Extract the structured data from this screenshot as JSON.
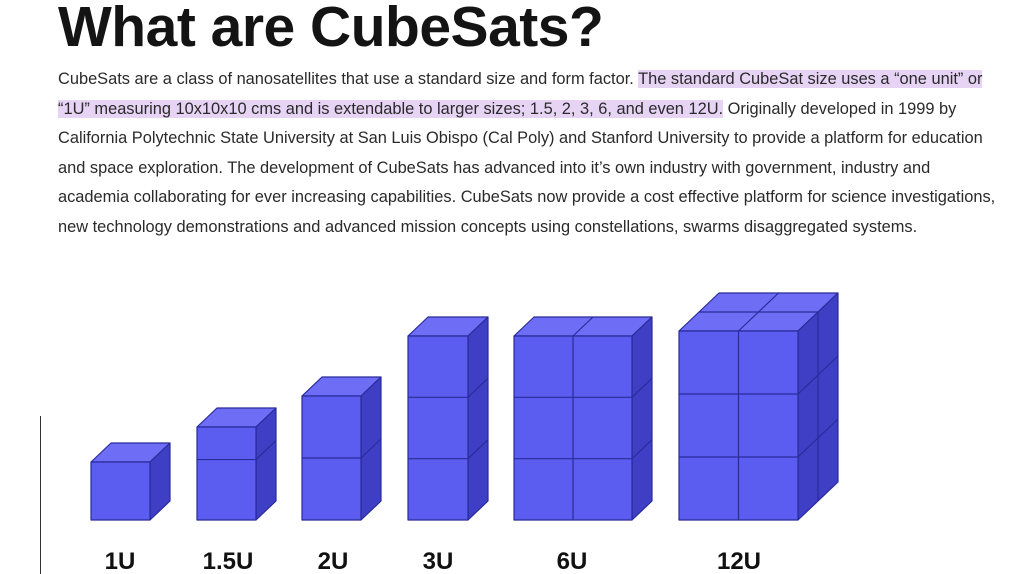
{
  "heading": "What are CubeSats?",
  "paragraph": {
    "part1": "CubeSats are a class of nanosatellites that use a standard size and form factor.  ",
    "highlight": "The standard CubeSat size uses a “one unit” or “1U” measuring 10x10x10 cms and is extendable to larger sizes; 1.5, 2, 3, 6, and even 12U.",
    "part2": "  Originally developed in 1999 by California Polytechnic State University at San Luis Obispo (Cal Poly) and Stanford University to provide a platform for education and space exploration.  The development of CubeSats has advanced into it’s own industry with government, industry and academia collaborating for ever increasing capabilities.  CubeSats now provide a cost effective platform for science investigations, new technology demonstrations and advanced mission concepts using constellations, swarms disaggregated systems."
  },
  "figure": {
    "colors": {
      "front": "#5b5cf0",
      "top": "#6d6ef5",
      "side": "#3e3fc4",
      "edge": "#2a2b9a",
      "highlight": "#8a8cf8"
    },
    "labels": {
      "u1": "1U",
      "u1_5": "1.5U",
      "u2": "2U",
      "u3": "3U",
      "u6": "6U",
      "u12": "12U"
    }
  }
}
